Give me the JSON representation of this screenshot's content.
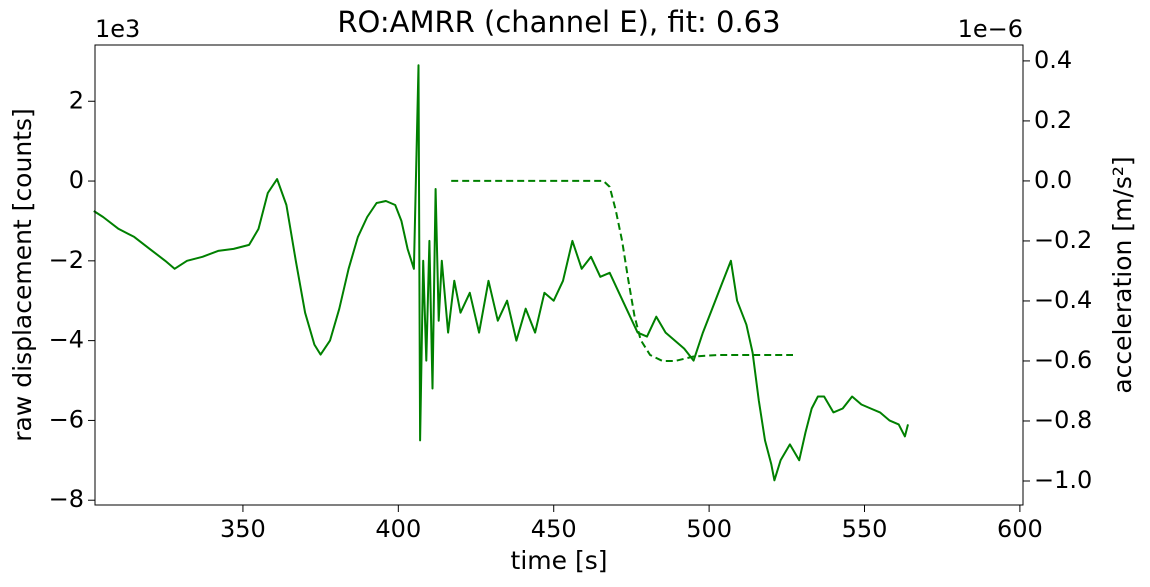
{
  "chart_data": {
    "type": "line",
    "title": "RO:AMRR  (channel E), fit: 0.63",
    "xlabel": "time [s]",
    "ylabel": "raw displacement [counts]",
    "y2label": "acceleration [m/s²]",
    "y_offset_label": "1e3",
    "y2_offset_label": "1e−6",
    "xlim": [
      302.4,
      601
    ],
    "xticks": [
      350,
      400,
      450,
      500,
      550,
      600
    ],
    "ylim": [
      -8.12,
      3.41
    ],
    "yticks": [
      {
        "value": -8,
        "label": "−8"
      },
      {
        "value": -6,
        "label": "−6"
      },
      {
        "value": -4,
        "label": "−4"
      },
      {
        "value": -2,
        "label": "−2"
      },
      0,
      2
    ],
    "y2lim": [
      -1.08,
      0.453
    ],
    "y2ticks": [
      {
        "value": -1.0,
        "label": "−1.0"
      },
      {
        "value": -0.8,
        "label": "−0.8"
      },
      {
        "value": -0.6,
        "label": "−0.6"
      },
      {
        "value": -0.4,
        "label": "−0.4"
      },
      {
        "value": -0.2,
        "label": "−0.2"
      },
      {
        "value": 0,
        "label": "0.0"
      },
      0.2,
      0.4
    ],
    "series": [
      {
        "color": "#008000",
        "linestyle": "solid",
        "axis": "y",
        "x": [
          302,
          305,
          310,
          315,
          320,
          325,
          328,
          332,
          337,
          342,
          347,
          352,
          355,
          358,
          361,
          364,
          367,
          370,
          373,
          375,
          378,
          381,
          384,
          387,
          390,
          393,
          396,
          399,
          401,
          403,
          405,
          406.5,
          407,
          408,
          409,
          410,
          411,
          412,
          413,
          414,
          416,
          418,
          420,
          423,
          426,
          429,
          432,
          435,
          438,
          441,
          444,
          447,
          450,
          453,
          456,
          459,
          462,
          465,
          468,
          471,
          474,
          477,
          480,
          483,
          486,
          489,
          492,
          495,
          498,
          501,
          504,
          507,
          509,
          512,
          514,
          516,
          518,
          520,
          521,
          523,
          526,
          529,
          531,
          533,
          535,
          537,
          540,
          543,
          546,
          549,
          552,
          555,
          558,
          561,
          563,
          564
        ],
        "values": [
          -0.75,
          -0.9,
          -1.2,
          -1.4,
          -1.7,
          -2.0,
          -2.2,
          -2.0,
          -1.9,
          -1.75,
          -1.7,
          -1.6,
          -1.2,
          -0.3,
          0.05,
          -0.6,
          -2.0,
          -3.3,
          -4.1,
          -4.35,
          -4.0,
          -3.2,
          -2.2,
          -1.4,
          -0.9,
          -0.55,
          -0.5,
          -0.6,
          -1.0,
          -1.7,
          -2.2,
          2.9,
          -6.5,
          -2.0,
          -4.5,
          -1.5,
          -5.2,
          -0.2,
          -3.5,
          -2.0,
          -3.8,
          -2.5,
          -3.3,
          -2.8,
          -3.8,
          -2.5,
          -3.5,
          -3.0,
          -4.0,
          -3.2,
          -3.8,
          -2.8,
          -3.0,
          -2.5,
          -1.5,
          -2.2,
          -1.9,
          -2.4,
          -2.3,
          -2.8,
          -3.3,
          -3.8,
          -3.9,
          -3.4,
          -3.8,
          -4.0,
          -4.2,
          -4.5,
          -3.8,
          -3.2,
          -2.6,
          -2.0,
          -3.0,
          -3.6,
          -4.3,
          -5.5,
          -6.5,
          -7.1,
          -7.5,
          -7.0,
          -6.6,
          -7.0,
          -6.3,
          -5.7,
          -5.4,
          -5.4,
          -5.8,
          -5.7,
          -5.4,
          -5.6,
          -5.7,
          -5.8,
          -6.0,
          -6.1,
          -6.4,
          -6.1
        ]
      },
      {
        "color": "#008000",
        "linestyle": "dashed",
        "axis": "y2",
        "x": [
          417,
          466,
          468,
          470,
          472,
          474,
          476,
          478,
          481,
          485,
          489,
          495,
          503,
          527
        ],
        "values": [
          0,
          0,
          -0.02,
          -0.1,
          -0.2,
          -0.33,
          -0.45,
          -0.53,
          -0.58,
          -0.6,
          -0.6,
          -0.585,
          -0.58,
          -0.58
        ]
      }
    ]
  }
}
